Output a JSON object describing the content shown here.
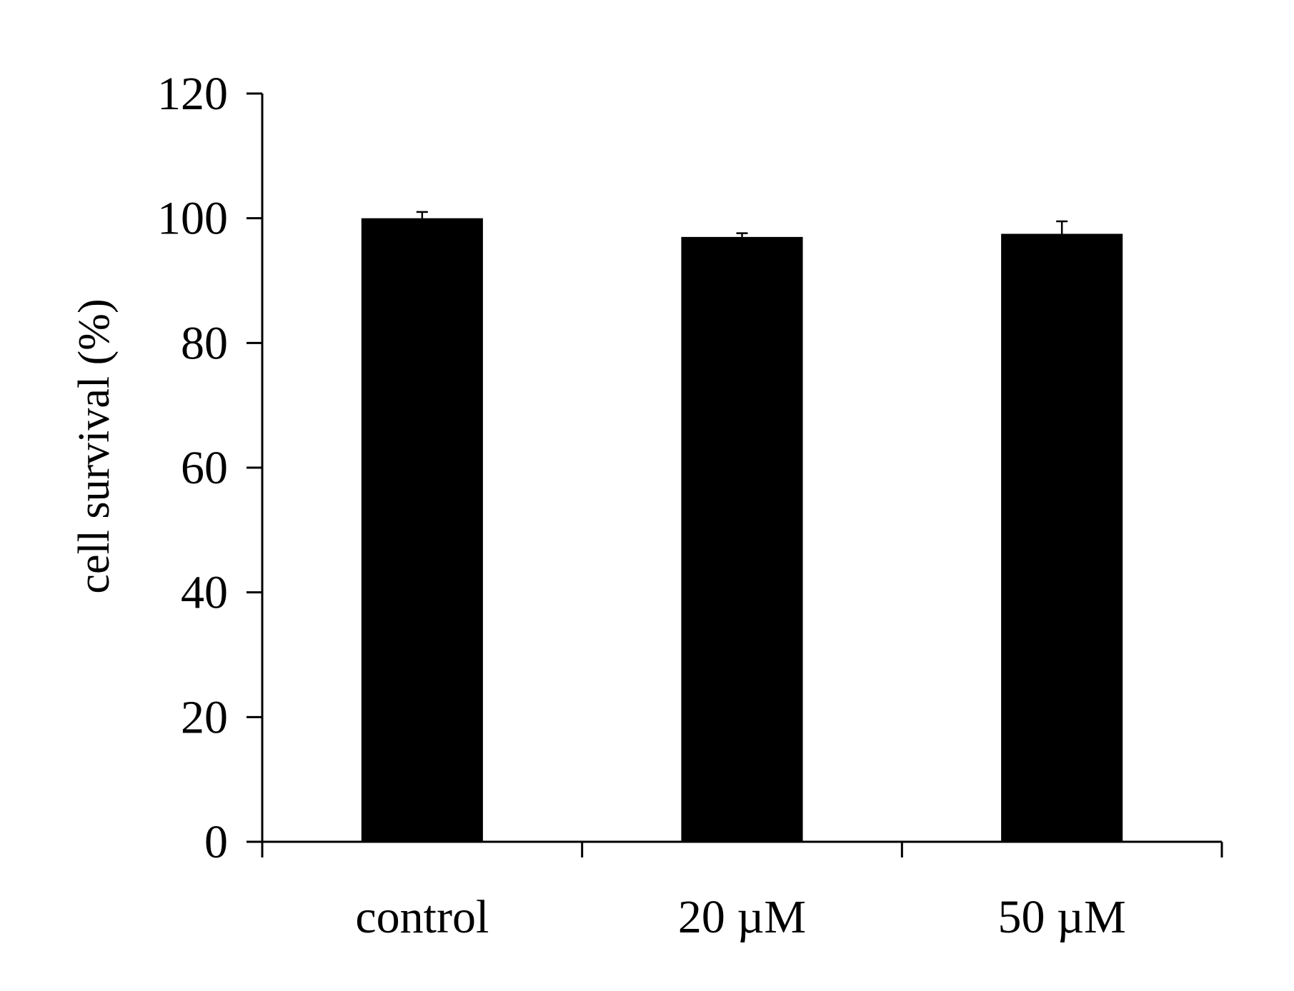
{
  "chart_data": {
    "type": "bar",
    "title": "",
    "xlabel": "",
    "ylabel": "cell survival (%)",
    "categories": [
      "control",
      "20 µM",
      "50 µM"
    ],
    "series": [
      {
        "values": [
          100,
          97,
          97.5
        ],
        "errors": [
          1.0,
          0.6,
          2.0
        ]
      }
    ],
    "ylim": [
      0,
      120
    ],
    "yticks": [
      0,
      20,
      40,
      60,
      80,
      100,
      120
    ],
    "ytick_labels": [
      "0",
      "20",
      "40",
      "60",
      "80",
      "100",
      "120"
    ],
    "bar_color": "#000000",
    "grid": false,
    "legend": "none"
  }
}
